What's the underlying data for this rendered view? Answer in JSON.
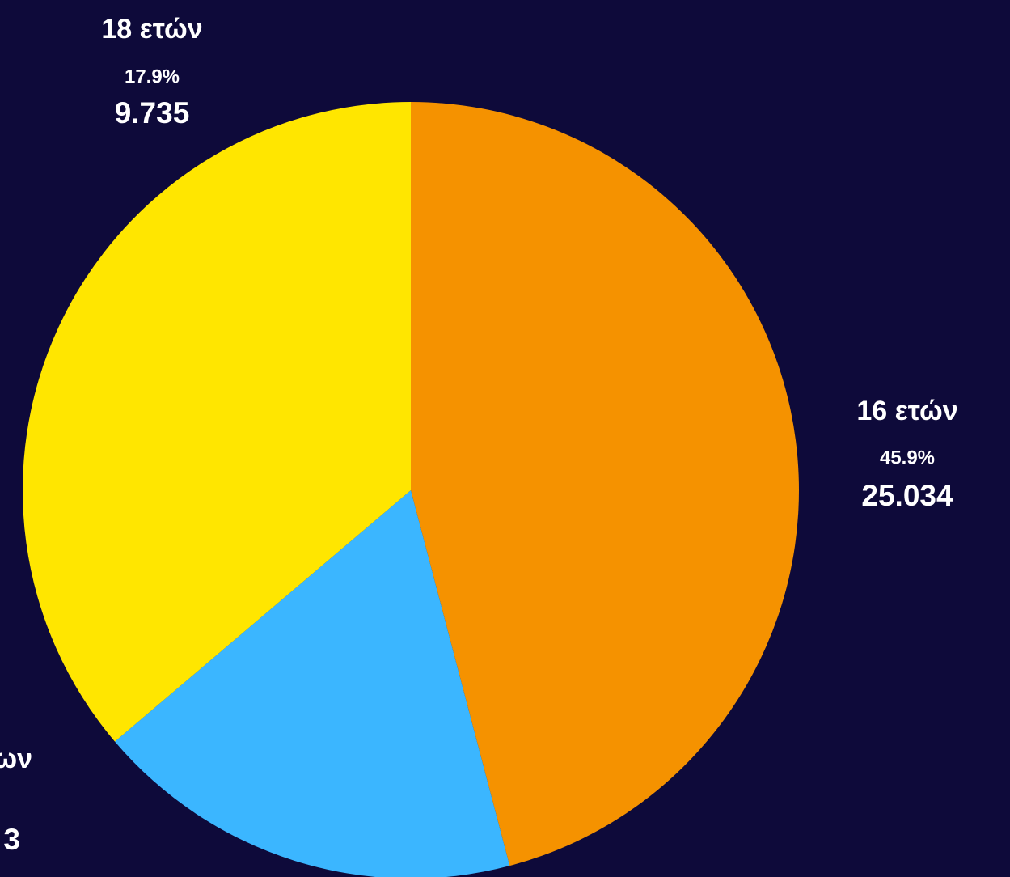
{
  "chart_data": {
    "type": "pie",
    "categories": [
      "16 ετών",
      "18 ετών",
      "ων"
    ],
    "values": [
      45.9,
      17.9,
      36.2
    ],
    "value_labels": [
      "45.9%",
      "17.9%",
      null
    ],
    "counts": [
      25034,
      9735,
      null
    ],
    "count_labels": [
      "25.034",
      "9.735",
      "3"
    ],
    "colors": [
      "#f59200",
      "#3bb6ff",
      "#ffe600"
    ]
  }
}
